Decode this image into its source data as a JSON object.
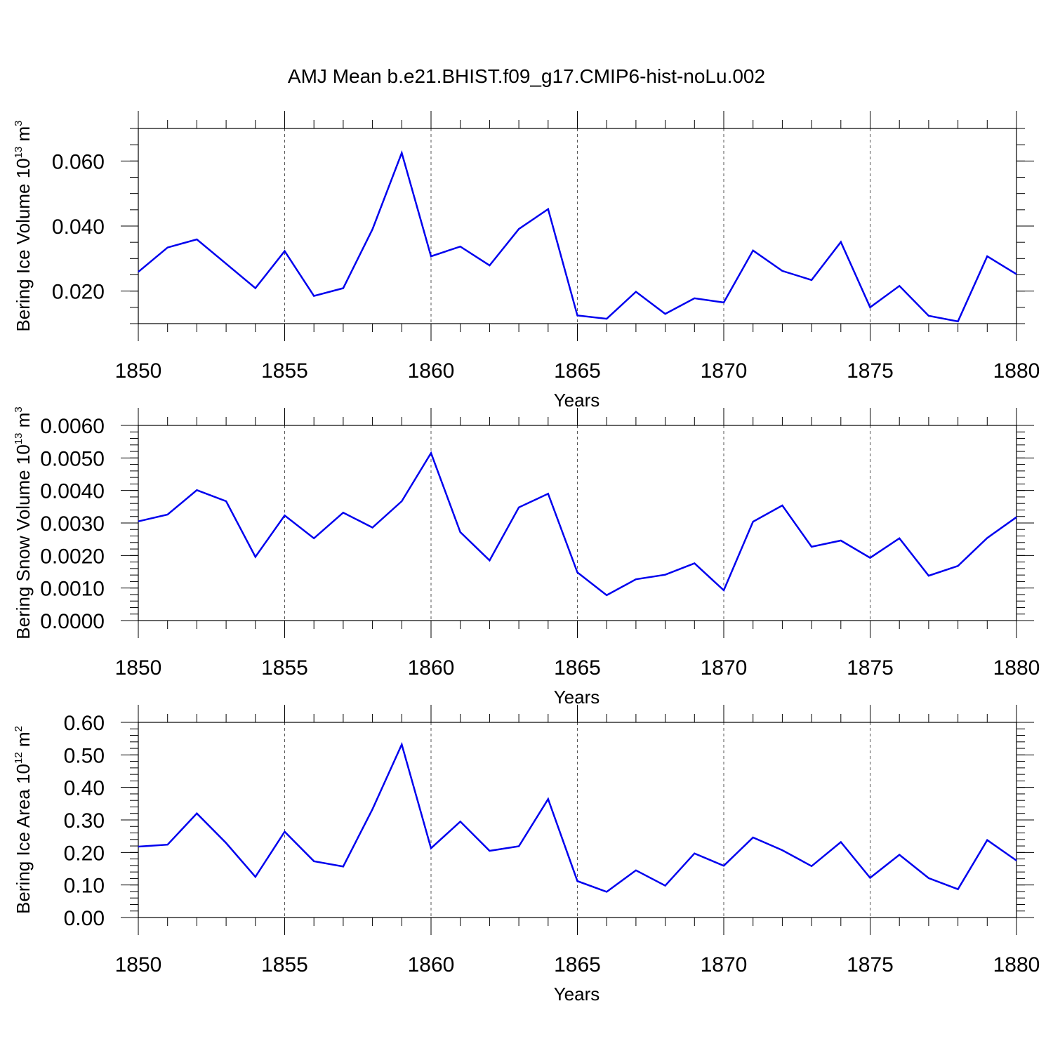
{
  "title": "AMJ Mean b.e21.BHIST.f09_g17.CMIP6-hist-noLu.002",
  "series_color": "#0000ee",
  "chart_data": [
    {
      "type": "line",
      "ylabel": "Bering Ice Volume 10",
      "ylabel_exp": "13",
      "ylabel_unit": " m",
      "ylabel_unit_exp": "3",
      "xlabel": "Years",
      "xlim": [
        1850,
        1880
      ],
      "ylim": [
        0.01,
        0.07
      ],
      "x_ticks": [
        "1850",
        "1855",
        "1860",
        "1865",
        "1870",
        "1875",
        "1880"
      ],
      "y_ticks": [
        0.02,
        0.04,
        0.06
      ],
      "y_tick_labels": [
        "0.020",
        "0.040",
        "0.060"
      ],
      "y_minor_step": 0.005,
      "x": [
        1850,
        1851,
        1852,
        1853,
        1854,
        1855,
        1856,
        1857,
        1858,
        1859,
        1860,
        1861,
        1862,
        1863,
        1864,
        1865,
        1866,
        1867,
        1868,
        1869,
        1870,
        1871,
        1872,
        1873,
        1874,
        1875,
        1876,
        1877,
        1878,
        1879,
        1880
      ],
      "values": [
        0.0259,
        0.0334,
        0.0359,
        0.0284,
        0.0209,
        0.0323,
        0.0185,
        0.0209,
        0.039,
        0.0625,
        0.0307,
        0.0337,
        0.0279,
        0.0391,
        0.0452,
        0.0125,
        0.0115,
        0.0198,
        0.013,
        0.0178,
        0.0165,
        0.0325,
        0.0262,
        0.0234,
        0.0351,
        0.015,
        0.0216,
        0.0124,
        0.0107,
        0.0307,
        0.0252
      ]
    },
    {
      "type": "line",
      "ylabel": "Bering Snow Volume 10",
      "ylabel_exp": "13",
      "ylabel_unit": " m",
      "ylabel_unit_exp": "3",
      "xlabel": "Years",
      "xlim": [
        1850,
        1880
      ],
      "ylim": [
        0.0,
        0.006
      ],
      "x_ticks": [
        "1850",
        "1855",
        "1860",
        "1865",
        "1870",
        "1875",
        "1880"
      ],
      "y_ticks": [
        0.0,
        0.001,
        0.002,
        0.003,
        0.004,
        0.005,
        0.006
      ],
      "y_tick_labels": [
        "0.0000",
        "0.0010",
        "0.0020",
        "0.0030",
        "0.0040",
        "0.0050",
        "0.0060"
      ],
      "y_minor_step": 0.0002,
      "x": [
        1850,
        1851,
        1852,
        1853,
        1854,
        1855,
        1856,
        1857,
        1858,
        1859,
        1860,
        1861,
        1862,
        1863,
        1864,
        1865,
        1866,
        1867,
        1868,
        1869,
        1870,
        1871,
        1872,
        1873,
        1874,
        1875,
        1876,
        1877,
        1878,
        1879,
        1880
      ],
      "values": [
        0.00305,
        0.00326,
        0.00401,
        0.00367,
        0.00196,
        0.00323,
        0.00253,
        0.00332,
        0.00286,
        0.00367,
        0.00515,
        0.00272,
        0.00185,
        0.00348,
        0.0039,
        0.00148,
        0.00078,
        0.00127,
        0.00141,
        0.00176,
        0.00093,
        0.00304,
        0.00354,
        0.00227,
        0.00246,
        0.00193,
        0.00253,
        0.00138,
        0.00168,
        0.00254,
        0.00318
      ]
    },
    {
      "type": "line",
      "ylabel": "Bering Ice Area 10",
      "ylabel_exp": "12",
      "ylabel_unit": " m",
      "ylabel_unit_exp": "2",
      "xlabel": "Years",
      "xlim": [
        1850,
        1880
      ],
      "ylim": [
        0.0,
        0.6
      ],
      "x_ticks": [
        "1850",
        "1855",
        "1860",
        "1865",
        "1870",
        "1875",
        "1880"
      ],
      "y_ticks": [
        0.0,
        0.1,
        0.2,
        0.3,
        0.4,
        0.5,
        0.6
      ],
      "y_tick_labels": [
        "0.00",
        "0.10",
        "0.20",
        "0.30",
        "0.40",
        "0.50",
        "0.60"
      ],
      "y_minor_step": 0.02,
      "x": [
        1850,
        1851,
        1852,
        1853,
        1854,
        1855,
        1856,
        1857,
        1858,
        1859,
        1860,
        1861,
        1862,
        1863,
        1864,
        1865,
        1866,
        1867,
        1868,
        1869,
        1870,
        1871,
        1872,
        1873,
        1874,
        1875,
        1876,
        1877,
        1878,
        1879,
        1880
      ],
      "values": [
        0.218,
        0.224,
        0.32,
        0.229,
        0.125,
        0.264,
        0.173,
        0.157,
        0.333,
        0.532,
        0.213,
        0.295,
        0.205,
        0.219,
        0.364,
        0.112,
        0.079,
        0.145,
        0.098,
        0.197,
        0.159,
        0.246,
        0.207,
        0.158,
        0.232,
        0.122,
        0.193,
        0.121,
        0.087,
        0.238,
        0.175
      ]
    }
  ]
}
